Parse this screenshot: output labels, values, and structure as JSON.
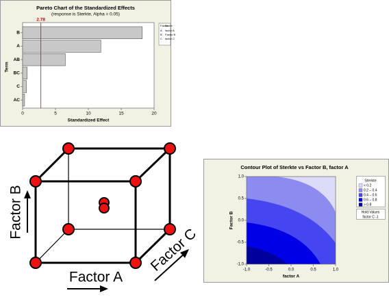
{
  "chart_data": [
    {
      "type": "bar",
      "orientation": "horizontal",
      "title": "Pareto Chart of the Standardized Effects",
      "subtitle": "(response is Sterkte, Alpha = 0.05)",
      "categories": [
        "B",
        "A",
        "AB",
        "BC",
        "C",
        "AC"
      ],
      "values": [
        18.2,
        11.9,
        6.5,
        0.7,
        0.6,
        0.3
      ],
      "color": "#c8c8c8",
      "xlim": [
        0,
        20
      ],
      "xticks": [
        0,
        5,
        10,
        15,
        20
      ],
      "xlabel": "Standardized Effect",
      "ylabel": "Term",
      "reference_line": {
        "value": 2.78,
        "color": "#e00000"
      },
      "legend": {
        "header": [
          "Factor",
          "Name"
        ],
        "rows": [
          [
            "A",
            "factor A"
          ],
          [
            "B",
            "Factor B"
          ],
          [
            "C",
            "factor C"
          ]
        ]
      }
    },
    {
      "type": "contour",
      "title": "Contour Plot of Sterkte vs Factor B, factor A",
      "xlabel": "factor A",
      "ylabel": "Factor B",
      "xlim": [
        -1,
        1
      ],
      "xticks": [
        {
          "value": -1,
          "label": "-1.0"
        },
        {
          "value": -0.5,
          "label": "-0.5"
        },
        {
          "value": 0,
          "label": "0.0"
        },
        {
          "value": 0.5,
          "label": "0.5"
        },
        {
          "value": 1,
          "label": "1.0"
        }
      ],
      "ylim": [
        -1,
        1
      ],
      "yticks": [
        {
          "value": -1,
          "label": "-1.0"
        },
        {
          "value": -0.5,
          "label": "-0.5"
        },
        {
          "value": 0,
          "label": "0.0"
        },
        {
          "value": 0.5,
          "label": "0.5"
        },
        {
          "value": 1,
          "label": "1.0"
        }
      ],
      "legend_title": "Sterkte",
      "bands": [
        {
          "label": "< 0.2",
          "color": "#dcdcf8"
        },
        {
          "label": "0.2 – 0.4",
          "color": "#8c8cf0"
        },
        {
          "label": "0.4 – 0.6",
          "color": "#4646f0"
        },
        {
          "label": "0.6 – 0.8",
          "color": "#0000e6"
        },
        {
          "label": "> 0.8",
          "color": "#00009c"
        }
      ],
      "hold_values": {
        "title": "Hold Values",
        "text": "factor C -1"
      }
    }
  ],
  "cube": {
    "x_label": "Factor A",
    "y_label": "Factor B",
    "z_label": "Factor C"
  }
}
